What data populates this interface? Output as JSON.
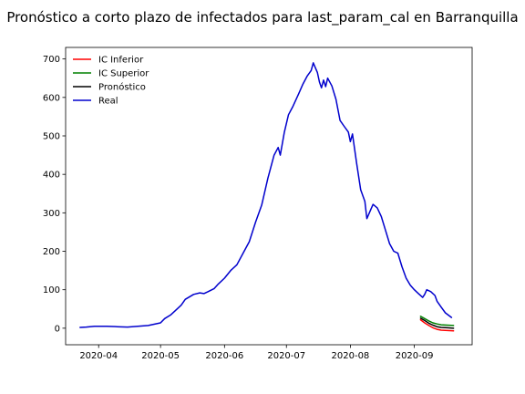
{
  "chart_data": {
    "type": "line",
    "title": "Pronóstico a corto plazo de infectados para last_param_cal en Barranquilla",
    "xlabel": "",
    "ylabel": "",
    "x_ticks": [
      "2020-04",
      "2020-05",
      "2020-06",
      "2020-07",
      "2020-08",
      "2020-09"
    ],
    "y_ticks": [
      0,
      100,
      200,
      300,
      400,
      500,
      600,
      700
    ],
    "xlim": [
      "2020-03-16",
      "2020-09-29"
    ],
    "ylim": [
      -43,
      730
    ],
    "grid": false,
    "legend_position": "upper-left",
    "series": [
      {
        "name": "IC Inferior",
        "color": "#ff0000",
        "points": [
          [
            "2020-09-04",
            22
          ],
          [
            "2020-09-06",
            14
          ],
          [
            "2020-09-08",
            7
          ],
          [
            "2020-09-10",
            1
          ],
          [
            "2020-09-12",
            -3
          ],
          [
            "2020-09-14",
            -5
          ],
          [
            "2020-09-17",
            -6
          ],
          [
            "2020-09-20",
            -7
          ]
        ]
      },
      {
        "name": "IC Superior",
        "color": "#008000",
        "points": [
          [
            "2020-09-04",
            31
          ],
          [
            "2020-09-06",
            25
          ],
          [
            "2020-09-08",
            19
          ],
          [
            "2020-09-10",
            14
          ],
          [
            "2020-09-12",
            11
          ],
          [
            "2020-09-14",
            9
          ],
          [
            "2020-09-17",
            8
          ],
          [
            "2020-09-20",
            7
          ]
        ]
      },
      {
        "name": "Pronóstico",
        "color": "#000000",
        "points": [
          [
            "2020-09-04",
            26
          ],
          [
            "2020-09-06",
            20
          ],
          [
            "2020-09-08",
            13
          ],
          [
            "2020-09-10",
            8
          ],
          [
            "2020-09-12",
            4
          ],
          [
            "2020-09-14",
            2
          ],
          [
            "2020-09-17",
            1
          ],
          [
            "2020-09-20",
            0
          ]
        ]
      },
      {
        "name": "Real",
        "color": "#0000cd",
        "points": [
          [
            "2020-03-23",
            2
          ],
          [
            "2020-03-26",
            3
          ],
          [
            "2020-03-30",
            5
          ],
          [
            "2020-04-05",
            5
          ],
          [
            "2020-04-10",
            4
          ],
          [
            "2020-04-15",
            3
          ],
          [
            "2020-04-20",
            5
          ],
          [
            "2020-04-25",
            7
          ],
          [
            "2020-05-01",
            14
          ],
          [
            "2020-05-03",
            25
          ],
          [
            "2020-05-06",
            35
          ],
          [
            "2020-05-08",
            45
          ],
          [
            "2020-05-11",
            60
          ],
          [
            "2020-05-13",
            75
          ],
          [
            "2020-05-17",
            88
          ],
          [
            "2020-05-20",
            92
          ],
          [
            "2020-05-22",
            90
          ],
          [
            "2020-05-24",
            95
          ],
          [
            "2020-05-27",
            103
          ],
          [
            "2020-05-29",
            115
          ],
          [
            "2020-06-01",
            130
          ],
          [
            "2020-06-04",
            150
          ],
          [
            "2020-06-07",
            165
          ],
          [
            "2020-06-10",
            195
          ],
          [
            "2020-06-13",
            225
          ],
          [
            "2020-06-16",
            275
          ],
          [
            "2020-06-19",
            320
          ],
          [
            "2020-06-22",
            390
          ],
          [
            "2020-06-25",
            450
          ],
          [
            "2020-06-27",
            470
          ],
          [
            "2020-06-28",
            450
          ],
          [
            "2020-06-30",
            510
          ],
          [
            "2020-07-02",
            555
          ],
          [
            "2020-07-04",
            575
          ],
          [
            "2020-07-07",
            610
          ],
          [
            "2020-07-09",
            635
          ],
          [
            "2020-07-11",
            655
          ],
          [
            "2020-07-13",
            670
          ],
          [
            "2020-07-14",
            690
          ],
          [
            "2020-07-16",
            665
          ],
          [
            "2020-07-17",
            640
          ],
          [
            "2020-07-18",
            625
          ],
          [
            "2020-07-19",
            645
          ],
          [
            "2020-07-20",
            628
          ],
          [
            "2020-07-21",
            650
          ],
          [
            "2020-07-23",
            630
          ],
          [
            "2020-07-25",
            595
          ],
          [
            "2020-07-27",
            540
          ],
          [
            "2020-07-29",
            525
          ],
          [
            "2020-07-31",
            510
          ],
          [
            "2020-08-01",
            485
          ],
          [
            "2020-08-02",
            505
          ],
          [
            "2020-08-04",
            430
          ],
          [
            "2020-08-06",
            360
          ],
          [
            "2020-08-08",
            330
          ],
          [
            "2020-08-09",
            285
          ],
          [
            "2020-08-11",
            310
          ],
          [
            "2020-08-12",
            322
          ],
          [
            "2020-08-14",
            313
          ],
          [
            "2020-08-16",
            290
          ],
          [
            "2020-08-18",
            255
          ],
          [
            "2020-08-20",
            220
          ],
          [
            "2020-08-22",
            200
          ],
          [
            "2020-08-24",
            195
          ],
          [
            "2020-08-26",
            160
          ],
          [
            "2020-08-28",
            130
          ],
          [
            "2020-08-30",
            112
          ],
          [
            "2020-09-01",
            100
          ],
          [
            "2020-09-03",
            90
          ],
          [
            "2020-09-05",
            80
          ],
          [
            "2020-09-06",
            88
          ],
          [
            "2020-09-07",
            100
          ],
          [
            "2020-09-09",
            95
          ],
          [
            "2020-09-11",
            85
          ],
          [
            "2020-09-12",
            70
          ],
          [
            "2020-09-14",
            55
          ],
          [
            "2020-09-16",
            40
          ],
          [
            "2020-09-19",
            28
          ]
        ]
      }
    ]
  }
}
